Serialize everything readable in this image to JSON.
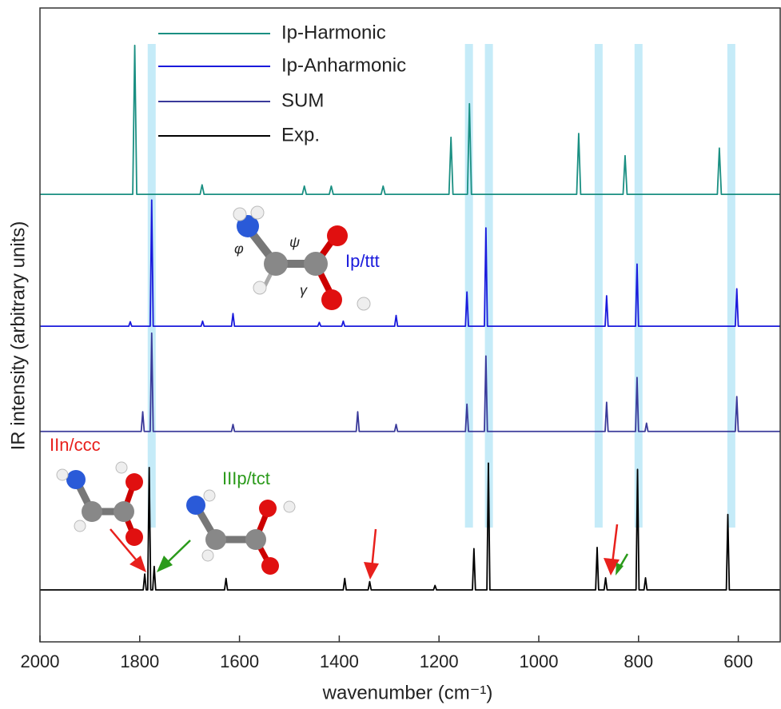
{
  "chart_data": {
    "type": "line",
    "x_label": "wavenumber (cm⁻¹)",
    "y_label": "IR intensity (arbitrary units)",
    "xlim": [
      2000,
      516
    ],
    "xticks": [
      2000,
      1800,
      1600,
      1400,
      1200,
      1000,
      800,
      600
    ],
    "ylim": [
      0,
      100
    ],
    "series": [
      {
        "name": "Ip-Harmonic",
        "color": "#1a8f82",
        "x": [
          2000,
          1814,
          1810,
          1806,
          1679,
          1675,
          1671,
          1474,
          1470,
          1466,
          1420,
          1416,
          1412,
          1316,
          1312,
          1308,
          1180,
          1176,
          1172,
          1143,
          1139,
          1135,
          924,
          920,
          916,
          831,
          827,
          823,
          642,
          638,
          634,
          516
        ],
        "values": [
          70.6,
          70.6,
          94.1,
          70.6,
          70.6,
          72.1,
          70.6,
          70.6,
          71.9,
          70.6,
          70.6,
          71.9,
          70.6,
          70.6,
          71.9,
          70.6,
          70.6,
          79.6,
          70.6,
          70.6,
          84.9,
          70.6,
          70.6,
          80.2,
          70.6,
          70.6,
          76.7,
          70.6,
          70.6,
          77.9,
          70.6,
          70.6
        ]
      },
      {
        "name": "Ip-Anharmonic",
        "color": "#1a1adc",
        "x": [
          2000,
          1822,
          1819,
          1816,
          1779,
          1776,
          1773,
          1677,
          1674,
          1671,
          1616,
          1613,
          1610,
          1443,
          1440,
          1437,
          1395,
          1392,
          1389,
          1289,
          1286,
          1283,
          1147,
          1144,
          1141,
          1109,
          1106,
          1103,
          867,
          864,
          861,
          806,
          803,
          800,
          606,
          603,
          600,
          516
        ],
        "values": [
          49.8,
          49.8,
          50.5,
          49.8,
          49.8,
          69.7,
          49.8,
          49.8,
          50.6,
          49.8,
          49.8,
          51.8,
          49.8,
          49.8,
          50.4,
          49.8,
          49.8,
          50.6,
          49.8,
          49.8,
          51.5,
          49.8,
          49.8,
          55.2,
          49.8,
          49.8,
          65.3,
          49.8,
          49.8,
          54.6,
          49.8,
          49.8,
          59.6,
          49.8,
          49.8,
          55.7,
          49.8,
          49.8
        ]
      },
      {
        "name": "SUM",
        "color": "#3a3a9a",
        "x": [
          2000,
          1797,
          1794,
          1791,
          1779,
          1776,
          1773,
          1616,
          1613,
          1610,
          1366,
          1363,
          1360,
          1289,
          1286,
          1283,
          1147,
          1144,
          1141,
          1109,
          1106,
          1103,
          867,
          864,
          861,
          806,
          803,
          800,
          787,
          784,
          781,
          606,
          603,
          600,
          516
        ],
        "values": [
          33.2,
          33.2,
          36.3,
          33.2,
          33.2,
          48.7,
          33.2,
          33.2,
          34.3,
          33.2,
          33.2,
          36.3,
          33.2,
          33.2,
          34.3,
          33.2,
          33.2,
          37.5,
          33.2,
          33.2,
          45.1,
          33.2,
          33.2,
          37.8,
          33.2,
          33.2,
          41.7,
          33.2,
          33.2,
          34.5,
          33.2,
          33.2,
          38.7,
          33.2,
          33.2
        ]
      },
      {
        "name": "Exp.",
        "color": "#000000",
        "x": [
          2000,
          1793,
          1790,
          1787,
          1784,
          1781,
          1778,
          1774,
          1771,
          1768,
          1630,
          1627,
          1624,
          1392,
          1389,
          1386,
          1342,
          1339,
          1336,
          1211,
          1208,
          1205,
          1133,
          1130,
          1127,
          1104,
          1101,
          1098,
          886,
          883,
          880,
          869,
          866,
          863,
          805,
          802,
          799,
          789,
          786,
          783,
          624,
          621,
          618,
          516
        ],
        "values": [
          8.2,
          8.2,
          10.7,
          8.2,
          8.2,
          27.5,
          8.2,
          8.2,
          11.9,
          8.2,
          8.2,
          10.0,
          8.2,
          8.2,
          10.0,
          8.2,
          8.2,
          9.5,
          8.2,
          8.2,
          8.9,
          8.2,
          8.2,
          14.7,
          8.2,
          8.2,
          28.2,
          8.2,
          8.2,
          14.9,
          8.2,
          8.2,
          10.1,
          8.2,
          8.2,
          27.2,
          8.2,
          8.2,
          10.1,
          8.2,
          8.2,
          20.1,
          8.2,
          8.2
        ]
      }
    ],
    "highlight_bands": [
      1776,
      1140,
      1100,
      880,
      800,
      614
    ],
    "annotations": [
      {
        "text": "Ip/ttt",
        "color": "#1a1adc"
      },
      {
        "text": "IIn/ccc",
        "color": "#e8201c"
      },
      {
        "text": "IIIp/tct",
        "color": "#2a9a1a"
      }
    ],
    "dihedral_labels": [
      "φ",
      "ψ",
      "γ"
    ]
  }
}
